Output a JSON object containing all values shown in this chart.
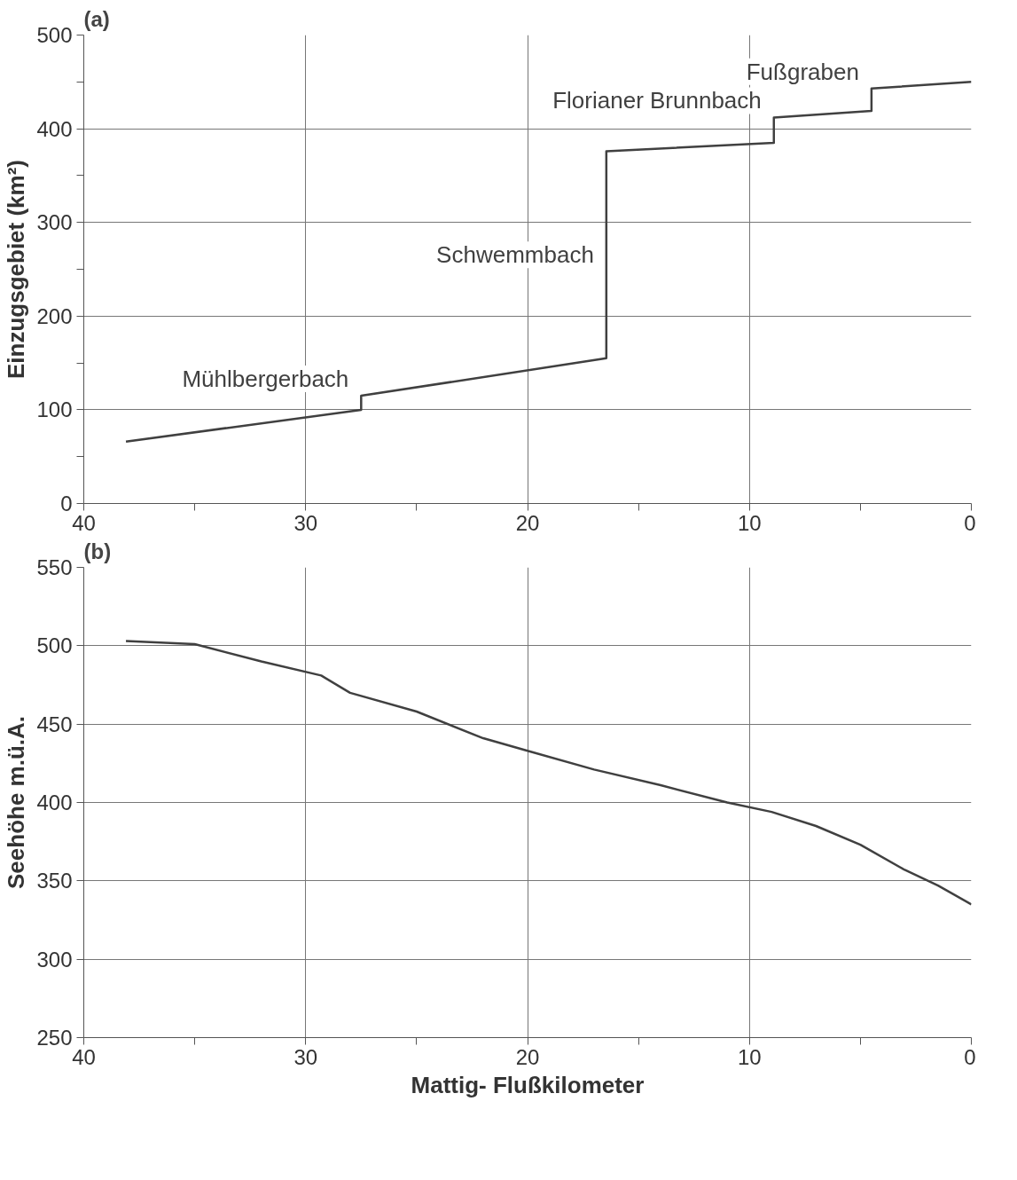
{
  "chart_data": [
    {
      "type": "line",
      "title": "(a)",
      "ylabel": "Einzugsgebiet (km²)",
      "xlim": [
        40,
        0
      ],
      "ylim": [
        0,
        500
      ],
      "xticks": [
        40,
        {
          "value": 35,
          "label": null
        },
        30,
        {
          "value": 25,
          "label": null
        },
        20,
        {
          "value": 15,
          "label": null
        },
        10,
        {
          "value": 5,
          "label": null
        },
        0
      ],
      "yticks": [
        0,
        {
          "value": 50,
          "label": null
        },
        100,
        {
          "value": 150,
          "label": null
        },
        200,
        {
          "value": 250,
          "label": null
        },
        300,
        {
          "value": 350,
          "label": null
        },
        400,
        {
          "value": 450,
          "label": null
        },
        500
      ],
      "grid": true,
      "x": [
        38.1,
        27.5,
        27.5,
        16.45,
        16.45,
        8.9,
        8.9,
        4.5,
        4.5,
        0
      ],
      "series": [
        {
          "color": "#404040",
          "values": [
            66,
            100,
            115,
            155,
            376,
            385,
            412,
            419,
            443,
            450
          ]
        }
      ],
      "annotations": [
        "Mühlbergerbach",
        "Schwemmbach",
        "Florianer Brunnbach",
        "Fußgraben"
      ]
    },
    {
      "type": "line",
      "title": "(b)",
      "ylabel": "Seehöhe m.ü.A.",
      "xlabel": "Mattig- Flußkilometer",
      "xlim": [
        40,
        0
      ],
      "ylim": [
        250,
        550
      ],
      "xticks": [
        40,
        {
          "value": 35,
          "label": null
        },
        30,
        {
          "value": 25,
          "label": null
        },
        20,
        {
          "value": 15,
          "label": null
        },
        10,
        {
          "value": 5,
          "label": null
        },
        0
      ],
      "yticks": [
        250,
        300,
        350,
        400,
        450,
        500,
        550
      ],
      "grid": true,
      "x": [
        38.1,
        35,
        32,
        29.3,
        28,
        25,
        22,
        20,
        17,
        14,
        11,
        9,
        7,
        5,
        3,
        1.5,
        0
      ],
      "series": [
        {
          "color": "#404040",
          "values": [
            503,
            501,
            490,
            481,
            470,
            458,
            441,
            433,
            421,
            411,
            400,
            394,
            385,
            373,
            357,
            347,
            335
          ]
        }
      ]
    }
  ]
}
